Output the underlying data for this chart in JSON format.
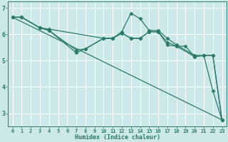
{
  "title": "",
  "xlabel": "Humidex (Indice chaleur)",
  "ylabel": "",
  "xlim": [
    -0.5,
    23.5
  ],
  "ylim": [
    2.5,
    7.25
  ],
  "yticks": [
    3,
    4,
    5,
    6,
    7
  ],
  "xticks": [
    0,
    1,
    2,
    3,
    4,
    5,
    6,
    7,
    8,
    9,
    10,
    11,
    12,
    13,
    14,
    15,
    16,
    17,
    18,
    19,
    20,
    21,
    22,
    23
  ],
  "bg_color": "#cce8e8",
  "line_color": "#2a7a6a",
  "grid_color": "#ffffff",
  "series": [
    {
      "x": [
        0,
        1,
        3,
        4,
        10,
        11,
        12,
        13,
        14,
        15,
        16,
        17,
        18,
        20,
        21,
        22,
        23
      ],
      "y": [
        6.65,
        6.65,
        6.25,
        6.2,
        5.85,
        5.85,
        6.1,
        6.8,
        6.6,
        6.15,
        6.15,
        5.85,
        5.6,
        5.2,
        5.2,
        3.85,
        2.75
      ],
      "has_markers": true
    },
    {
      "x": [
        0,
        1,
        3,
        4,
        7,
        8,
        10,
        11,
        12,
        13,
        14,
        15,
        16,
        17,
        18,
        20,
        21,
        22,
        23
      ],
      "y": [
        6.65,
        6.65,
        6.25,
        6.15,
        5.4,
        5.45,
        5.85,
        5.85,
        6.05,
        5.85,
        5.85,
        6.1,
        6.1,
        5.7,
        5.55,
        5.15,
        5.2,
        5.2,
        2.75
      ],
      "has_markers": true
    },
    {
      "x": [
        0,
        1,
        3,
        4,
        7,
        8,
        10,
        11,
        12,
        13,
        14,
        15,
        16,
        17,
        18,
        19,
        20,
        21,
        22,
        23
      ],
      "y": [
        6.65,
        6.65,
        6.25,
        6.15,
        5.3,
        5.45,
        5.85,
        5.85,
        6.05,
        5.85,
        5.85,
        6.1,
        6.1,
        5.6,
        5.55,
        5.55,
        5.15,
        5.2,
        5.2,
        2.75
      ],
      "has_markers": true
    },
    {
      "x": [
        0,
        23
      ],
      "y": [
        6.65,
        2.75
      ],
      "has_markers": false
    }
  ],
  "marker": "D",
  "markersize": 2.5,
  "linewidth": 0.9,
  "tick_fontsize": 5.0,
  "xlabel_fontsize": 6.0
}
